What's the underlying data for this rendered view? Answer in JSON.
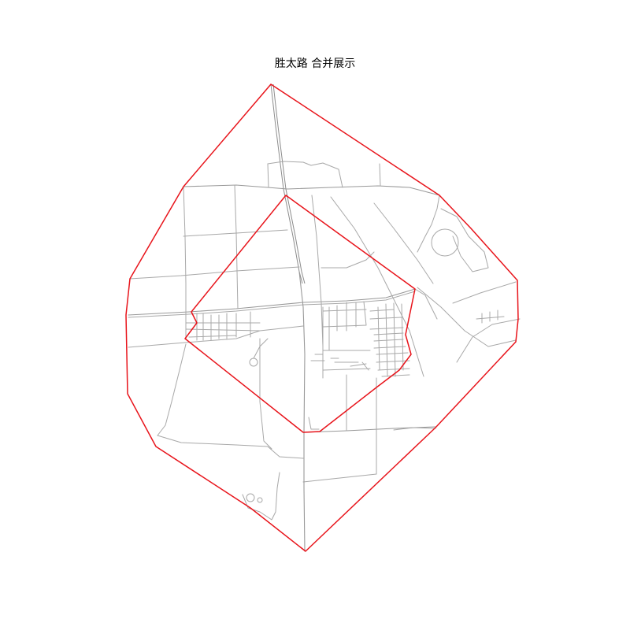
{
  "title": "胜太路 合并展示",
  "colors": {
    "background": "#ffffff",
    "boundary": "#e8141b",
    "road": "#a8a8a8"
  }
}
